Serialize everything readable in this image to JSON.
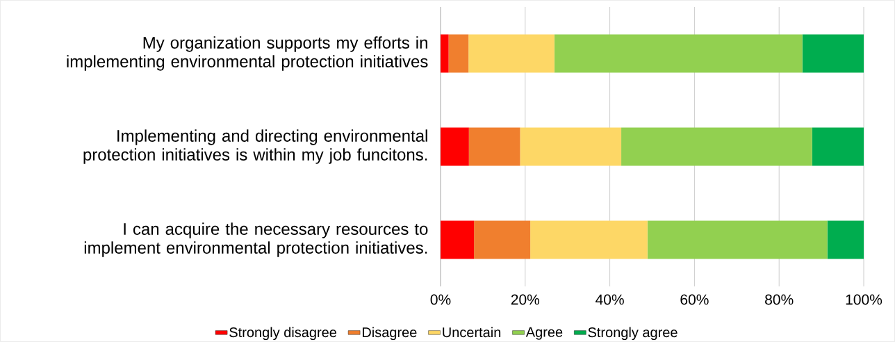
{
  "chart_data": {
    "type": "bar",
    "orientation": "horizontal",
    "stacked": true,
    "categories": [
      "My organization supports my efforts in implementing environmental protection initiatives",
      "Implementing and directing environmental protection initiatives is within my job funcitons.",
      "I can acquire the necessary resources to implement environmental protection initiatives."
    ],
    "series": [
      {
        "name": "Strongly disagree",
        "color": "#ff0000",
        "values": [
          1.9,
          6.7,
          7.9
        ]
      },
      {
        "name": "Disagree",
        "color": "#f07f2e",
        "values": [
          4.7,
          12.1,
          13.3
        ]
      },
      {
        "name": "Uncertain",
        "color": "#fdd766",
        "values": [
          20.3,
          23.9,
          27.7
        ]
      },
      {
        "name": "Agree",
        "color": "#92d050",
        "values": [
          58.6,
          45.1,
          42.5
        ]
      },
      {
        "name": "Strongly agree",
        "color": "#00ad4f",
        "values": [
          14.5,
          12.2,
          8.6
        ]
      }
    ],
    "xlim": [
      0,
      100
    ],
    "xticks": [
      {
        "value": 0,
        "label": "0%"
      },
      {
        "value": 20,
        "label": "20%"
      },
      {
        "value": 40,
        "label": "40%"
      },
      {
        "value": 60,
        "label": "60%"
      },
      {
        "value": 80,
        "label": "80%"
      },
      {
        "value": 100,
        "label": "100%"
      }
    ],
    "grid": "x",
    "legend": "bottom"
  }
}
